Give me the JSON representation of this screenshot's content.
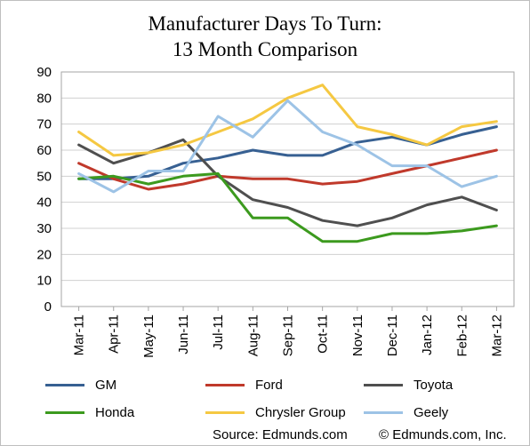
{
  "chart_data": {
    "type": "line",
    "title": [
      "Manufacturer Days To Turn:",
      "13 Month Comparison"
    ],
    "xlabel": "",
    "ylabel": "",
    "ylim": [
      0,
      90
    ],
    "yticks": [
      0,
      10,
      20,
      30,
      40,
      50,
      60,
      70,
      80,
      90
    ],
    "grid": true,
    "legend_position": "bottom",
    "categories": [
      "Mar-11",
      "Apr-11",
      "May-11",
      "Jun-11",
      "Jul-11",
      "Aug-11",
      "Sep-11",
      "Oct-11",
      "Nov-11",
      "Dec-11",
      "Jan-12",
      "Feb-12",
      "Mar-12"
    ],
    "series": [
      {
        "name": "GM",
        "color": "#376092",
        "values": [
          49,
          49,
          50,
          55,
          57,
          60,
          58,
          58,
          63,
          65,
          62,
          66,
          69
        ]
      },
      {
        "name": "Ford",
        "color": "#c0392b",
        "values": [
          55,
          49,
          45,
          47,
          50,
          49,
          49,
          47,
          48,
          51,
          54,
          57,
          60
        ]
      },
      {
        "name": "Toyota",
        "color": "#4f4f4f",
        "values": [
          62,
          55,
          59,
          64,
          50,
          41,
          38,
          33,
          31,
          34,
          39,
          42,
          37
        ]
      },
      {
        "name": "Honda",
        "color": "#3c9a1e",
        "values": [
          49,
          50,
          47,
          50,
          51,
          34,
          34,
          25,
          25,
          28,
          28,
          29,
          31
        ]
      },
      {
        "name": "Chrysler Group",
        "color": "#f5c842",
        "values": [
          67,
          58,
          59,
          62,
          67,
          72,
          80,
          85,
          69,
          66,
          62,
          69,
          71
        ]
      },
      {
        "name": "Geely",
        "color": "#9dc3e6",
        "values": [
          51,
          44,
          52,
          52,
          73,
          65,
          79,
          67,
          62,
          54,
          54,
          46,
          50
        ]
      }
    ]
  },
  "source": {
    "left": "Source: Edmunds.com",
    "right": "© Edmunds.com, Inc."
  }
}
